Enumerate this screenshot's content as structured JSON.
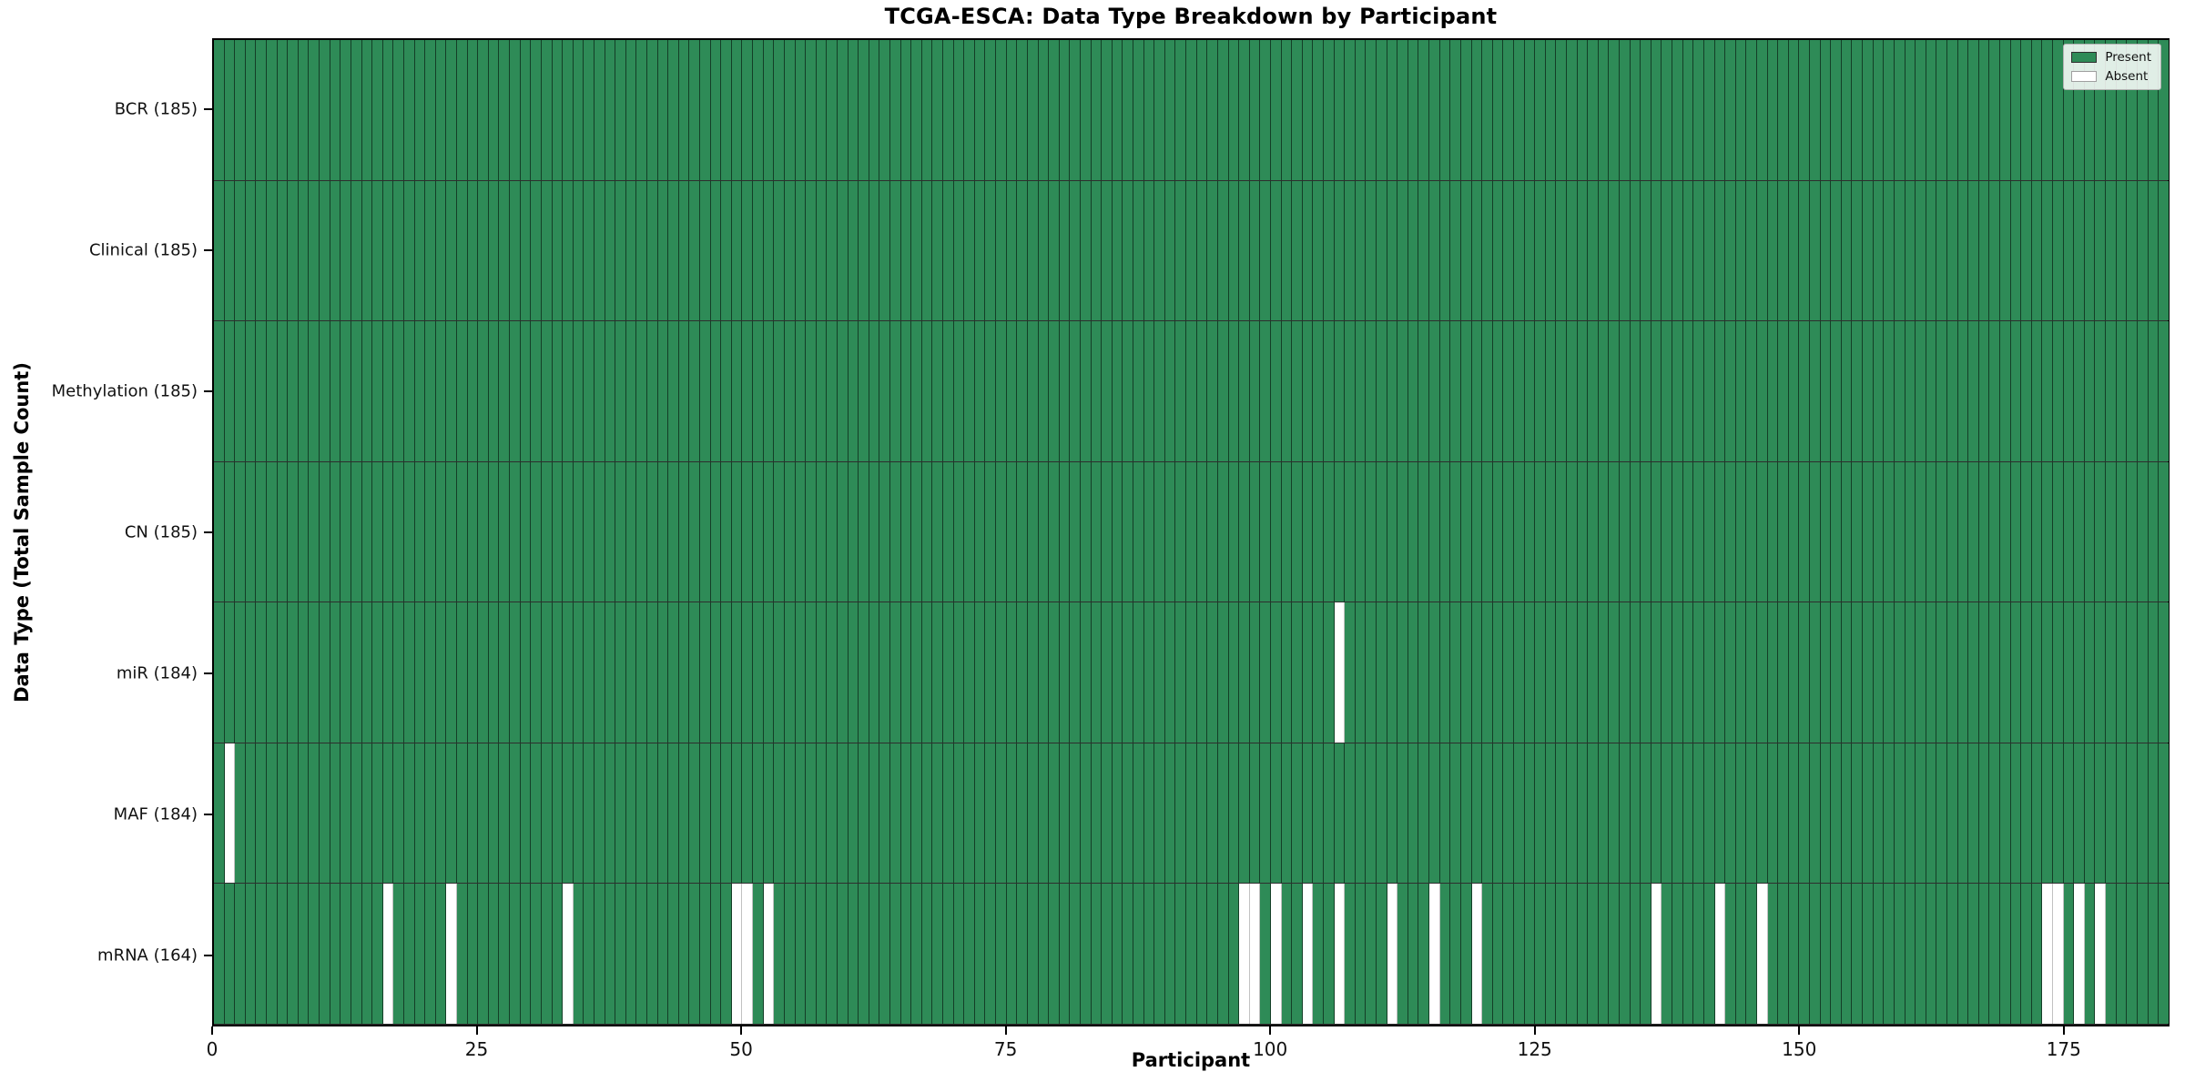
{
  "colors": {
    "present": "#2e8b57",
    "absent": "#ffffff",
    "cell_edge": "#2b2b2b",
    "row_divider": "#1a1a1a"
  },
  "chart_data": {
    "type": "heatmap",
    "title": "TCGA-ESCA: Data Type Breakdown by Participant",
    "xlabel": "Participant",
    "ylabel": "Data Type (Total Sample Count)",
    "total_participants": 185,
    "x_range": [
      0,
      185
    ],
    "x_ticks": [
      0,
      25,
      50,
      75,
      100,
      125,
      150,
      175
    ],
    "grid": "cell-edges",
    "legend_position": "upper right",
    "legend": [
      {
        "label": "Present",
        "color": "#2e8b57"
      },
      {
        "label": "Absent",
        "color": "#ffffff"
      }
    ],
    "rows": [
      {
        "label": "BCR (185)",
        "present_count": 185,
        "absent_participants": []
      },
      {
        "label": "Clinical (185)",
        "present_count": 185,
        "absent_participants": []
      },
      {
        "label": "Methylation (185)",
        "present_count": 185,
        "absent_participants": []
      },
      {
        "label": "CN (185)",
        "present_count": 185,
        "absent_participants": []
      },
      {
        "label": "miR (184)",
        "present_count": 184,
        "absent_participants": [
          106
        ]
      },
      {
        "label": "MAF (184)",
        "present_count": 184,
        "absent_participants": [
          1
        ]
      },
      {
        "label": "mRNA (164)",
        "present_count": 164,
        "absent_participants": [
          16,
          22,
          33,
          49,
          50,
          52,
          97,
          98,
          100,
          103,
          106,
          111,
          115,
          119,
          136,
          142,
          146,
          173,
          174,
          176,
          178
        ]
      }
    ]
  }
}
